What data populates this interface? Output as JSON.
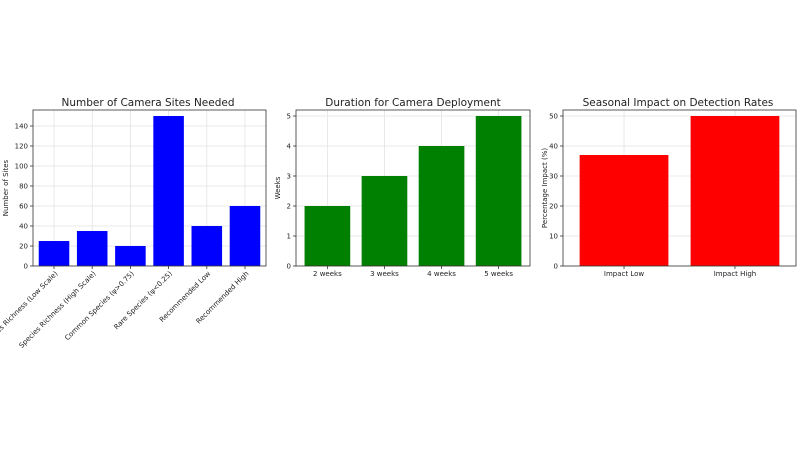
{
  "chart_data": [
    {
      "type": "bar",
      "title": "Number of Camera Sites Needed",
      "xlabel": "",
      "ylabel": "Number of Sites",
      "categories": [
        "Species Richness (Low Scale)",
        "Species Richness (High Scale)",
        "Common Species (ψ>0.75)",
        "Rare Species (ψ<0.25)",
        "Recommended Low",
        "Recommended High"
      ],
      "values": [
        25,
        35,
        20,
        150,
        40,
        60
      ],
      "ylim": [
        0,
        150
      ],
      "yticks": [
        0,
        20,
        40,
        60,
        80,
        100,
        120,
        140
      ],
      "color": "#0000ff",
      "grid": true
    },
    {
      "type": "bar",
      "title": "Duration for Camera Deployment",
      "xlabel": "",
      "ylabel": "Weeks",
      "categories": [
        "2 weeks",
        "3 weeks",
        "4 weeks",
        "5 weeks"
      ],
      "values": [
        2,
        3,
        4,
        5
      ],
      "ylim": [
        0,
        5
      ],
      "yticks": [
        0,
        1,
        2,
        3,
        4,
        5
      ],
      "color": "#008000",
      "grid": true
    },
    {
      "type": "bar",
      "title": "Seasonal Impact on Detection Rates",
      "xlabel": "",
      "ylabel": "Percentage Impact (%)",
      "categories": [
        "Impact Low",
        "Impact High"
      ],
      "values": [
        37,
        50
      ],
      "ylim": [
        0,
        50
      ],
      "yticks": [
        0,
        10,
        20,
        30,
        40,
        50
      ],
      "color": "#ff0000",
      "grid": true
    }
  ]
}
